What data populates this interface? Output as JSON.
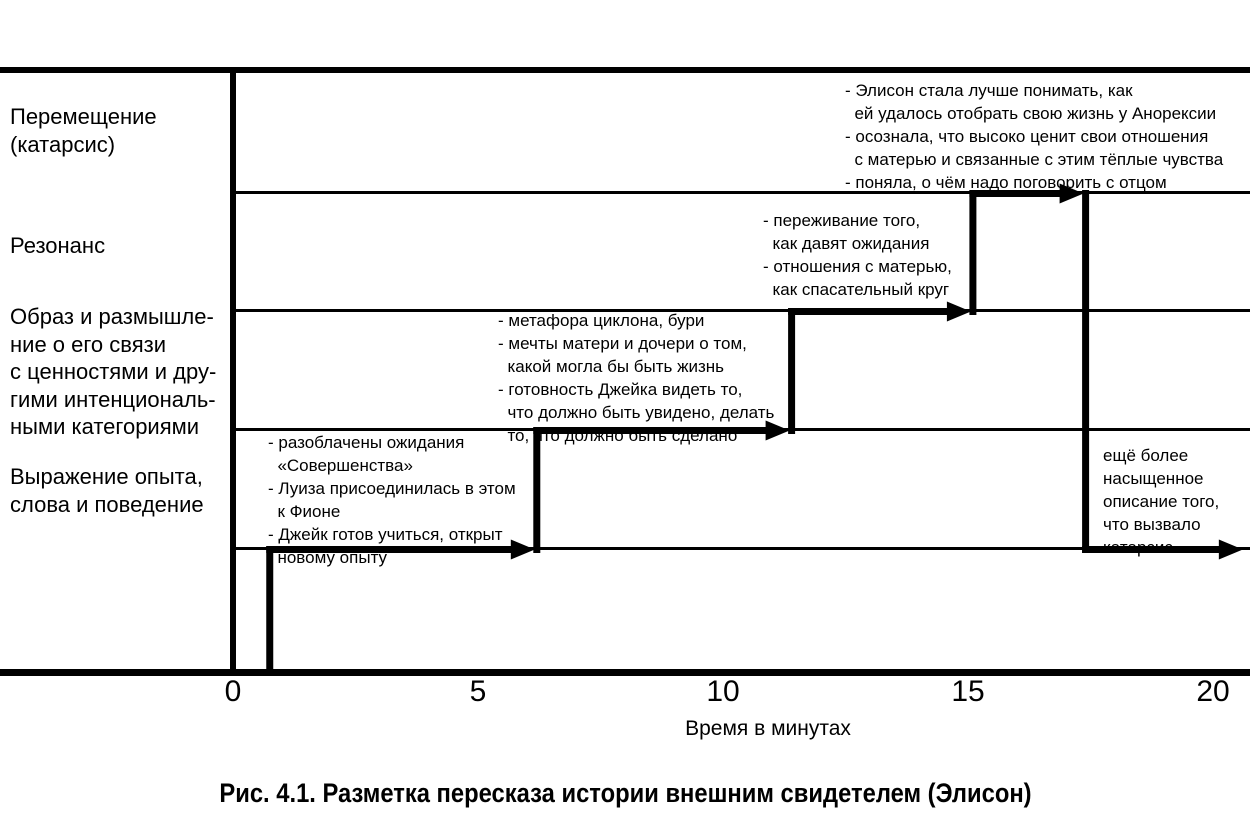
{
  "colors": {
    "ink": "#000000",
    "background": "#ffffff"
  },
  "caption": "Рис. 4.1. Разметка пересказа истории внешним свидетелем (Элисон)",
  "axis": {
    "ticks": [
      "0",
      "5",
      "10",
      "15",
      "20"
    ],
    "label": "Время в минутах"
  },
  "row_labels": [
    {
      "id": "displacement",
      "lines": [
        "Перемещение",
        "(катарсис)"
      ]
    },
    {
      "id": "resonance",
      "lines": [
        "Резонанс"
      ]
    },
    {
      "id": "image",
      "lines": [
        "Образ и размышле-",
        "ние о его связи",
        "с ценностями и дру-",
        "гими интенциональ-",
        "ными категориями"
      ]
    },
    {
      "id": "expression",
      "lines": [
        "Выражение опыта,",
        "слова и поведение"
      ]
    }
  ],
  "annotations": [
    {
      "id": "expression-notes",
      "lines": [
        "- разоблачены ожидания",
        "  «Совершенства»",
        "- Луиза присоединилась в этом",
        "  к Фионе",
        "- Джейк готов учиться, открыт",
        "  новому опыту"
      ]
    },
    {
      "id": "image-notes",
      "lines": [
        "- метафора циклона, бури",
        "- мечты матери и дочери о том,",
        "  какой могла бы быть жизнь",
        "- готовность Джейка видеть то,",
        "  что должно быть увидено, делать",
        "  то, что должно быть сделано"
      ]
    },
    {
      "id": "resonance-notes",
      "lines": [
        "- переживание того,",
        "  как давят ожидания",
        "- отношения с матерью,",
        "  как спасательный круг"
      ]
    },
    {
      "id": "displacement-notes",
      "lines": [
        "- Элисон стала лучше понимать, как",
        "  ей удалось отобрать свою жизнь у Анорексии",
        "- осознала, что высоко ценит свои отношения",
        "  с матерью и связанные с этим тёплые чувства",
        "- поняла, о чём надо поговорить с отцом"
      ]
    },
    {
      "id": "catharsis-note",
      "lines": [
        "ещё более",
        "насыщенное",
        "описание того,",
        "что вызвало",
        "катарсис"
      ]
    }
  ],
  "chart_data": {
    "type": "line",
    "subtype": "step-timeline-with-arrows",
    "title": "Рис. 4.1. Разметка пересказа истории внешним свидетелем (Элисон)",
    "xlabel": "Время в минутах",
    "x_ticks": [
      0,
      5,
      10,
      15,
      20
    ],
    "x_range": [
      0,
      20.75
    ],
    "grid": "horizontal-band-boundaries",
    "levels": [
      "Выражение опыта, слова и поведение",
      "Образ и размышление о его связи с ценностями и другими интенциональными категориями",
      "Резонанс",
      "Перемещение (катарсис)"
    ],
    "segments": [
      {
        "level": 0,
        "from_min": 0.75,
        "to_min": 6.2
      },
      {
        "level": 1,
        "from_min": 6.2,
        "to_min": 11.4
      },
      {
        "level": 2,
        "from_min": 11.4,
        "to_min": 15.1
      },
      {
        "level": 3,
        "from_min": 15.1,
        "to_min": 17.4
      },
      {
        "level": 0,
        "from_min": 17.4,
        "to_min": 20.65
      }
    ],
    "risers": [
      {
        "at_min": 0.75,
        "from_level": "baseline",
        "to_level": 0
      },
      {
        "at_min": 6.2,
        "from_level": 0,
        "to_level": 1
      },
      {
        "at_min": 11.4,
        "from_level": 1,
        "to_level": 2
      },
      {
        "at_min": 15.1,
        "from_level": 2,
        "to_level": 3
      },
      {
        "at_min": 17.4,
        "from_level": 3,
        "to_level": 0
      }
    ],
    "arrow_at_segment_ends": true
  }
}
